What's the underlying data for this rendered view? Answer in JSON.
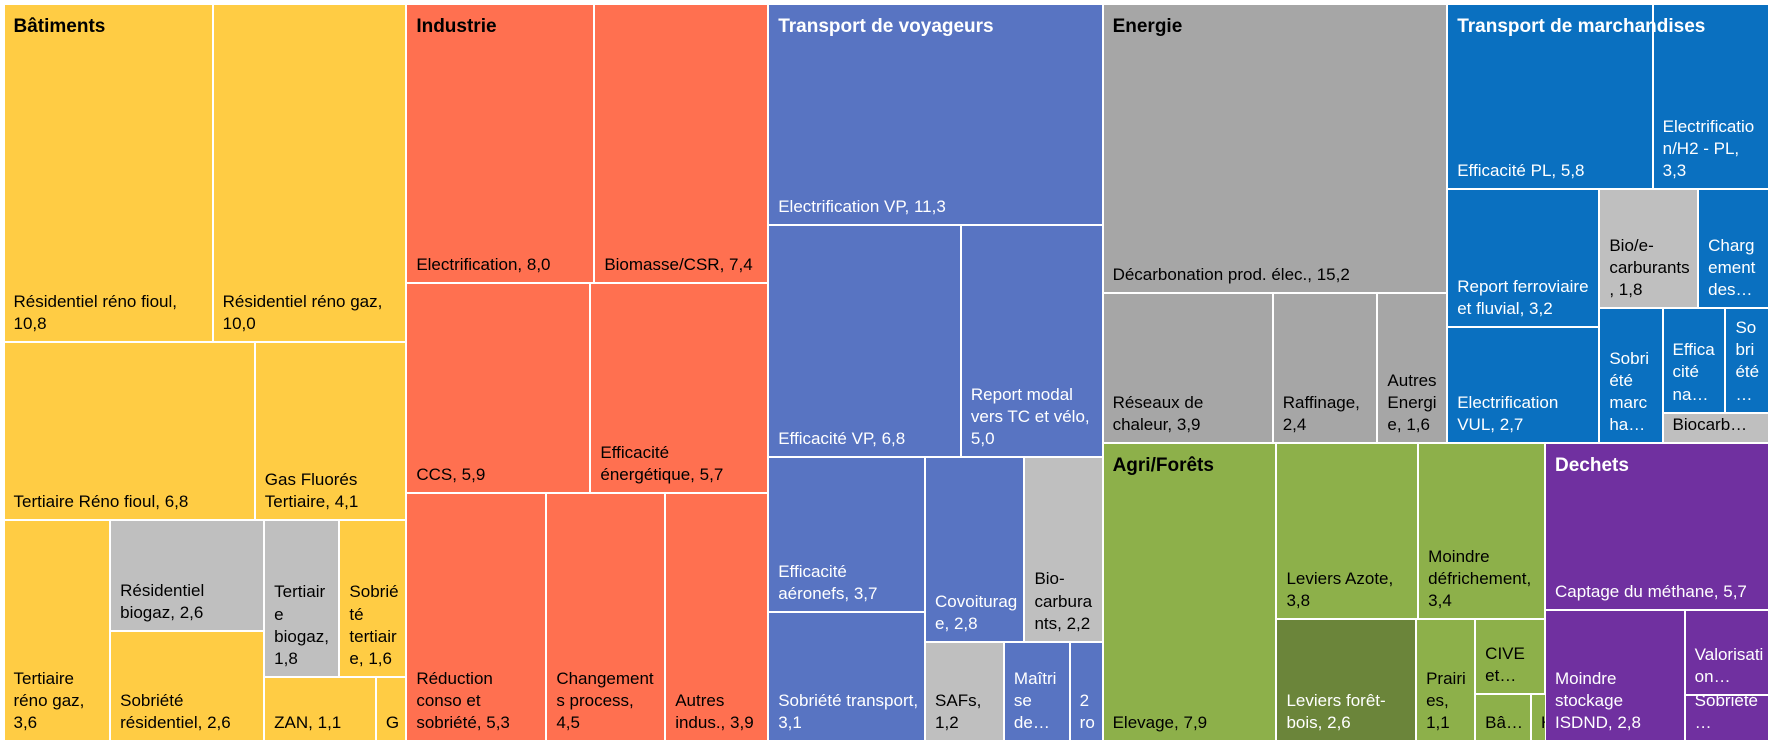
{
  "chart_data": {
    "type": "treemap",
    "series": [
      {
        "name": "Bâtiments",
        "color": "#ffcc44",
        "categories": [
          "Résidentiel réno fioul,",
          "Résidentiel réno gaz,",
          "Tertiaire Réno fioul,",
          "Gas Fluorés Tertiaire,",
          "Tertiaire réno gaz,",
          "Résidentiel biogaz,",
          "Sobriété résidentiel,",
          "Tertiaire biogaz,",
          "Sobriété tertiaire,",
          "ZAN,",
          "G"
        ],
        "values": [
          10.8,
          10.0,
          6.8,
          4.1,
          3.6,
          2.6,
          2.6,
          1.8,
          1.6,
          1.1,
          0.3
        ],
        "value_labels": [
          "10,8",
          "10,0",
          "6,8",
          "4,1",
          "3,6",
          "2,6",
          "2,6",
          "1,8",
          "1,6",
          "1,1",
          null
        ],
        "colors": [
          "#ffcc44",
          "#ffcc44",
          "#ffcc44",
          "#ffcc44",
          "#ffcc44",
          "#bfbfbf",
          "#ffcc44",
          "#bfbfbf",
          "#ffcc44",
          "#ffcc44",
          "#ffcc44"
        ]
      },
      {
        "name": "Industrie",
        "color": "#ff7050",
        "categories": [
          "Electrification,",
          "Biomasse/CSR,",
          "CCS,",
          "Efficacité énergétique,",
          "Réduction conso et sobriété,",
          "Changements process,",
          "Autres indus.,"
        ],
        "values": [
          8.0,
          7.4,
          5.9,
          5.7,
          5.3,
          4.5,
          3.9
        ],
        "value_labels": [
          "8,0",
          "7,4",
          "5,9",
          "5,7",
          "5,3",
          "4,5",
          "3,9"
        ],
        "colors": [
          "#ff7050",
          "#ff7050",
          "#ff7050",
          "#ff7050",
          "#ff7050",
          "#ff7050",
          "#ff7050"
        ]
      },
      {
        "name": "Transport de voyageurs",
        "color": "#5874c2",
        "categories": [
          "Electrification VP,",
          "Efficacité VP,",
          "Report modal vers TC et vélo,",
          "Efficacité aéronefs,",
          "Sobriété transport,",
          "Covoiturage,",
          "Bio-carburants,",
          "SAFs,",
          "Maîtrise de…",
          "2 ro"
        ],
        "values": [
          11.3,
          6.8,
          5.0,
          3.7,
          3.1,
          2.8,
          2.2,
          1.2,
          1.0,
          0.5
        ],
        "value_labels": [
          "11,3",
          "6,8",
          "5,0",
          "3,7",
          "3,1",
          "2,8",
          "2,2",
          "1,2",
          null,
          null
        ],
        "colors": [
          "#5874c2",
          "#5874c2",
          "#5874c2",
          "#5874c2",
          "#5874c2",
          "#5874c2",
          "#bfbfbf",
          "#bfbfbf",
          "#5874c2",
          "#5874c2"
        ]
      },
      {
        "name": "Energie",
        "color": "#a6a6a6",
        "categories": [
          "Décarbonation prod. élec.,",
          "Réseaux de chaleur,",
          "Raffinage,",
          "Autres Energie,"
        ],
        "values": [
          15.2,
          3.9,
          2.4,
          1.6
        ],
        "value_labels": [
          "15,2",
          "3,9",
          "2,4",
          "1,6"
        ],
        "colors": [
          "#a6a6a6",
          "#a6a6a6",
          "#a6a6a6",
          "#a6a6a6"
        ]
      },
      {
        "name": "Transport de marchandises",
        "color": "#0a70c0",
        "categories": [
          "Efficacité PL,",
          "Electrification/H2 - PL,",
          "Report ferroviaire et fluvial,",
          "Electrification VUL,",
          "Bio/e-carburants,",
          "Chargement des…",
          "Sobriété marcha…",
          "Efficacité na…",
          "Sobriété…",
          "Biocarb…"
        ],
        "values": [
          5.8,
          3.3,
          3.2,
          2.7,
          1.8,
          1.3,
          1.3,
          1.0,
          0.7,
          0.5
        ],
        "value_labels": [
          "5,8",
          "3,3",
          "3,2",
          "2,7",
          "1,8",
          null,
          null,
          null,
          null,
          null
        ],
        "colors": [
          "#0a70c0",
          "#0a70c0",
          "#0a70c0",
          "#0a70c0",
          "#bfbfbf",
          "#0a70c0",
          "#0a70c0",
          "#0a70c0",
          "#0a70c0",
          "#bfbfbf"
        ]
      },
      {
        "name": "Agri/Forêts",
        "color": "#8db04a",
        "categories": [
          "Elevage,",
          "Leviers Azote,",
          "Moindre défrichement,",
          "Leviers forêt-bois,",
          "Prairies,",
          "CIVE et…",
          "Bâ…",
          "H"
        ],
        "values": [
          7.9,
          3.8,
          3.4,
          2.6,
          1.1,
          0.8,
          0.4,
          0.1
        ],
        "value_labels": [
          "7,9",
          "3,8",
          "3,4",
          "2,6",
          "1,1",
          null,
          null,
          null
        ],
        "colors": [
          "#8db04a",
          "#8db04a",
          "#8db04a",
          "#6b853a",
          "#8db04a",
          "#8db04a",
          "#8db04a",
          "#8db04a"
        ]
      },
      {
        "name": "Dechets",
        "color": "#7030a0",
        "categories": [
          "Captage du méthane,",
          "Moindre stockage ISDND,",
          "Valorisation…",
          "Sobriété…"
        ],
        "values": [
          5.7,
          2.8,
          1.1,
          0.6
        ],
        "value_labels": [
          "5,7",
          "2,8",
          null,
          null
        ],
        "colors": [
          "#7030a0",
          "#7030a0",
          "#7030a0",
          "#7030a0"
        ]
      }
    ]
  }
}
